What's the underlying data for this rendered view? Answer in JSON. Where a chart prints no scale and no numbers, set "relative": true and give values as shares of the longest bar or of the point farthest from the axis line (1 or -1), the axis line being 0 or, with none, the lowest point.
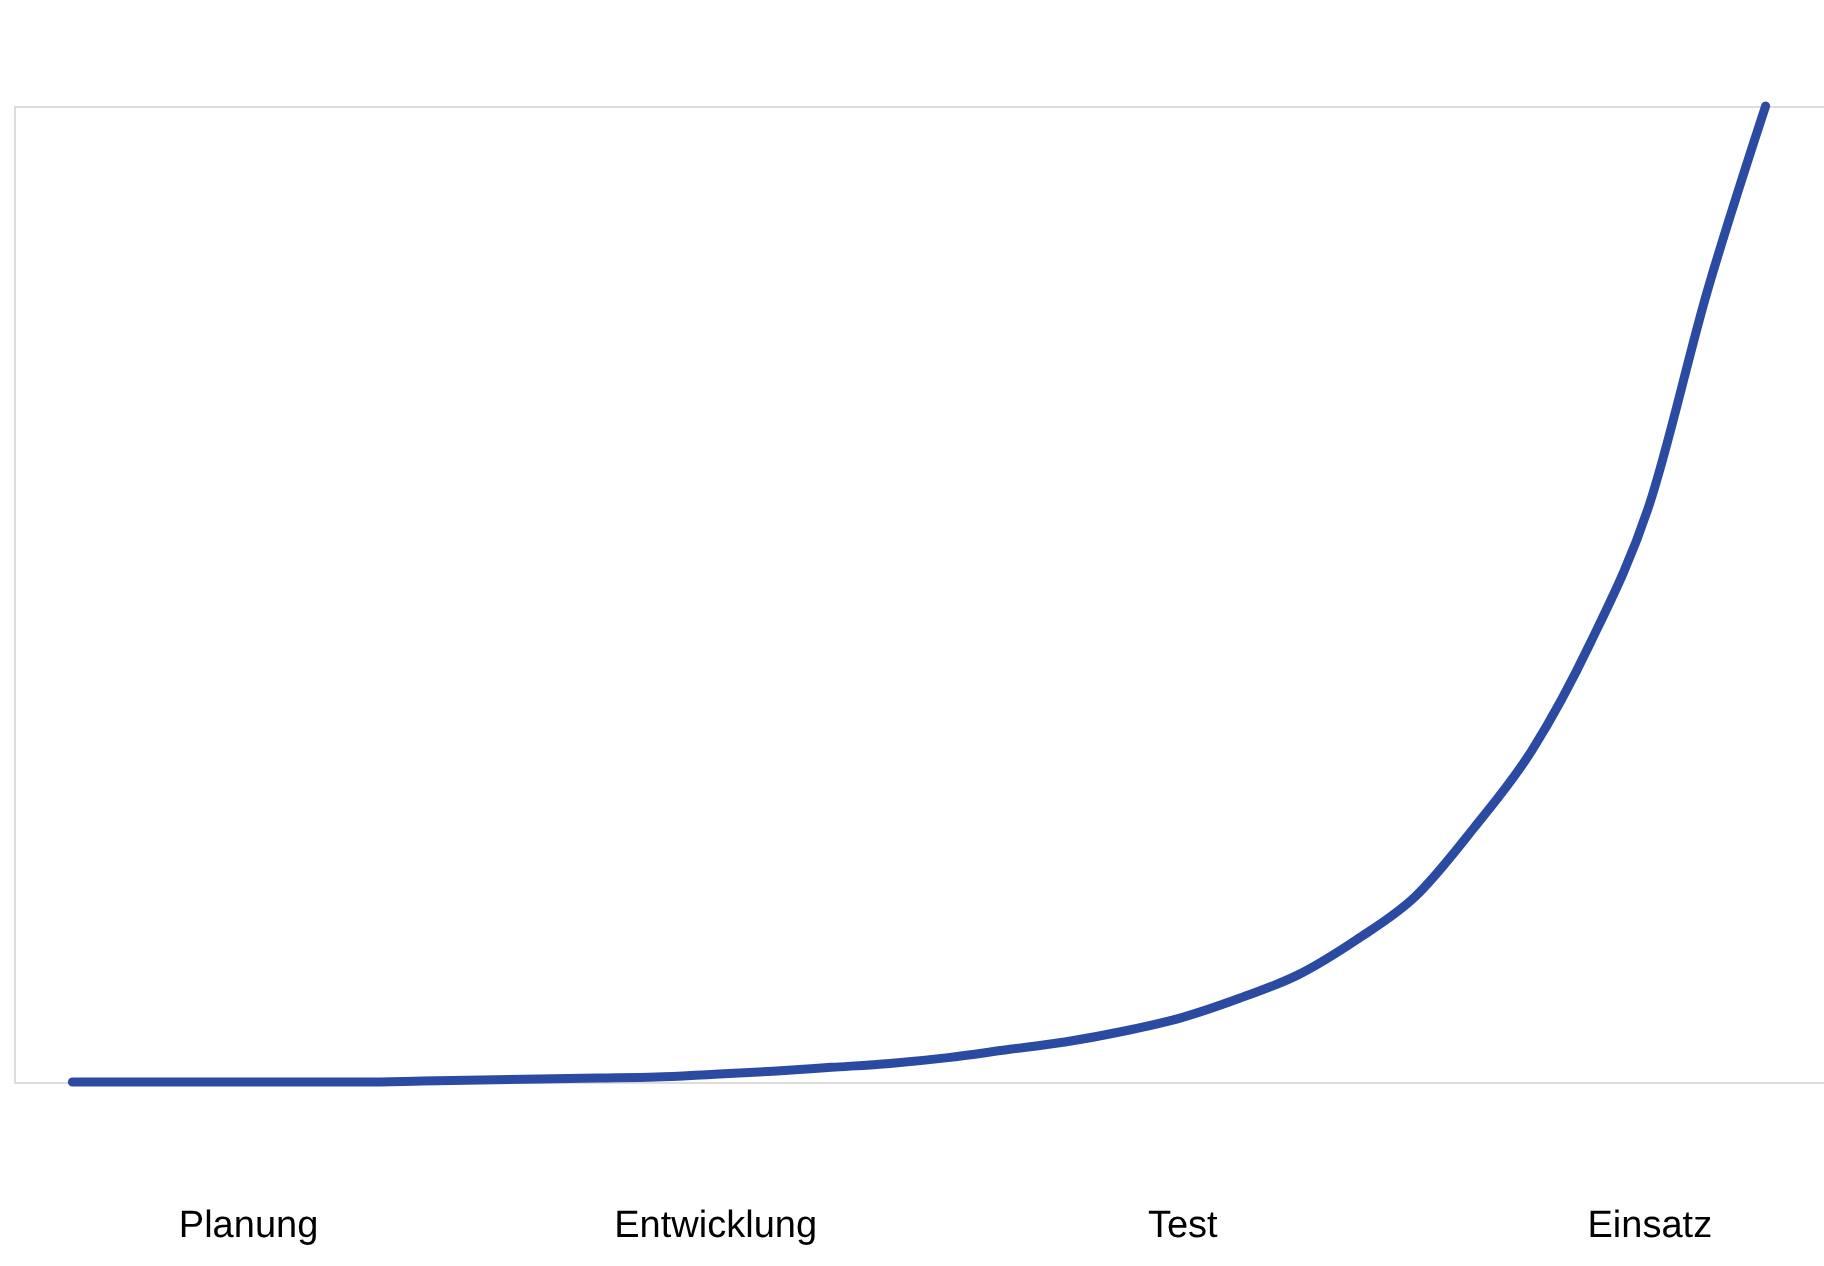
{
  "chart_data": {
    "type": "line",
    "relative": true,
    "grid": false,
    "marker": "none",
    "line_style": "solid",
    "categories": [
      null,
      null,
      null,
      "Planung",
      null,
      null,
      null,
      null,
      null,
      null,
      null,
      "Entwicklung",
      null,
      null,
      null,
      null,
      null,
      null,
      null,
      "Test",
      null,
      null,
      null,
      null,
      null,
      null,
      null,
      "Einsatz",
      null,
      null
    ],
    "series": [
      {
        "color": "#2b4ba3",
        "values": [
          0,
          0,
          0,
          0,
          0,
          0,
          0.001,
          0.002,
          0.003,
          0.004,
          0.005,
          0.008,
          0.011,
          0.015,
          0.019,
          0.025,
          0.033,
          0.041,
          0.052,
          0.066,
          0.086,
          0.11,
          0.146,
          0.19,
          0.26,
          0.34,
          0.45,
          0.59,
          0.81,
          1
        ]
      }
    ]
  }
}
